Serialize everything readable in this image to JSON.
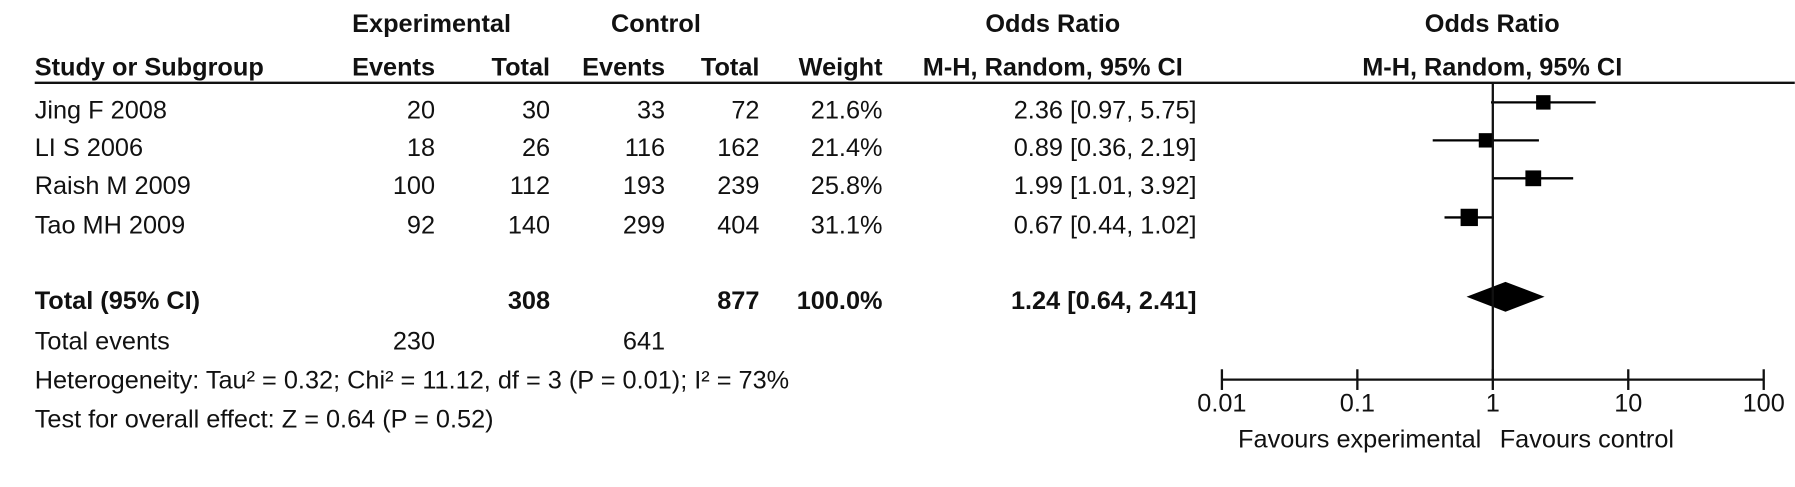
{
  "chart_data": {
    "type": "forest",
    "group_headers": [
      "Experimental",
      "Control",
      "Odds Ratio",
      "Odds Ratio"
    ],
    "column_headers": [
      "Study or Subgroup",
      "Events",
      "Total",
      "Events",
      "Total",
      "Weight",
      "M-H, Random, 95% CI",
      "M-H, Random, 95% CI"
    ],
    "studies": [
      "Jing F 2008",
      "LI S 2006",
      "Raish M 2009",
      "Tao MH 2009"
    ],
    "exp_events": [
      20,
      18,
      100,
      92
    ],
    "exp_total": [
      30,
      26,
      112,
      140
    ],
    "ctrl_events": [
      33,
      116,
      193,
      299
    ],
    "ctrl_total": [
      72,
      162,
      239,
      404
    ],
    "weight": [
      21.6,
      21.4,
      25.8,
      31.1
    ],
    "weight_labels": [
      "21.6%",
      "21.4%",
      "25.8%",
      "31.1%"
    ],
    "or": [
      2.36,
      0.89,
      1.99,
      0.67
    ],
    "ci_lower": [
      0.97,
      0.36,
      1.01,
      0.44
    ],
    "ci_upper": [
      5.75,
      2.19,
      3.92,
      1.02
    ],
    "ci_labels": [
      "2.36 [0.97, 5.75]",
      "0.89 [0.36, 2.19]",
      "1.99 [1.01, 3.92]",
      "0.67 [0.44, 1.02]"
    ],
    "total": {
      "label": "Total (95% CI)",
      "exp_total": 308,
      "ctrl_total": 877,
      "weight": 100.0,
      "weight_label": "100.0%",
      "or": 1.24,
      "ci_lower": 0.64,
      "ci_upper": 2.41,
      "ci_label": "1.24 [0.64, 2.41]"
    },
    "total_events": {
      "label": "Total events",
      "exp": 230,
      "ctrl": 641
    },
    "heterogeneity": "Heterogeneity: Tau² = 0.32; Chi² = 11.12, df = 3 (P = 0.01); I² = 73%",
    "overall_effect": "Test for overall effect: Z = 0.64 (P = 0.52)",
    "xlim": [
      0.01,
      100
    ],
    "xticks": [
      0.01,
      0.1,
      1,
      10,
      100
    ],
    "log_scale": true,
    "x_labels": [
      "Favours experimental",
      "Favours control"
    ],
    "color": "#000000"
  }
}
